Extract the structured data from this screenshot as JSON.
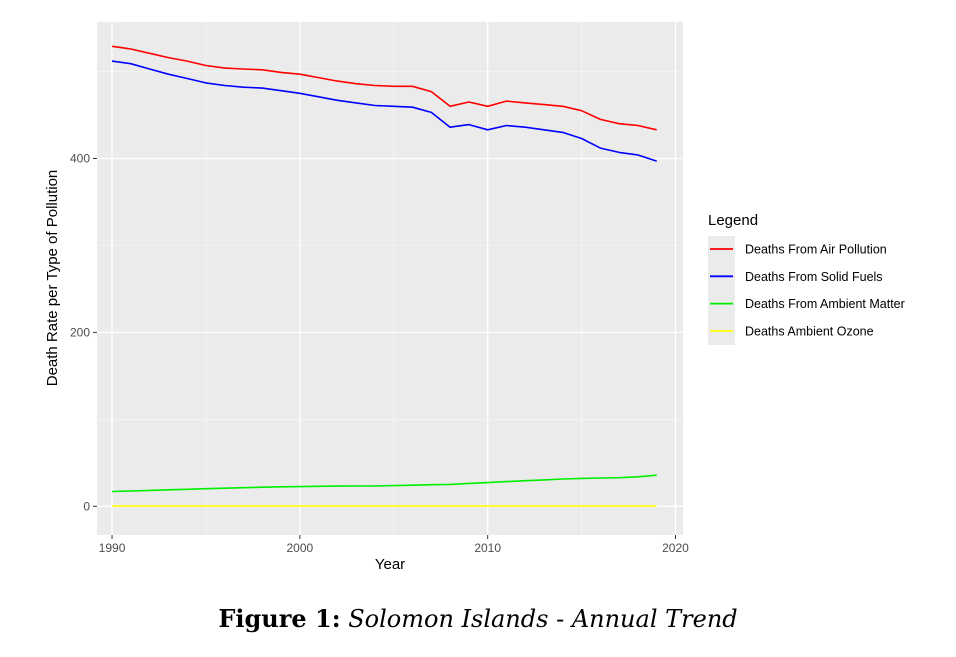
{
  "chart_data": {
    "type": "line",
    "xlabel": "Year",
    "ylabel": "Death Rate per Type of Pollution",
    "xlim": [
      1989.2,
      2020.4
    ],
    "ylim": [
      -33,
      557
    ],
    "x_ticks": [
      1990,
      2000,
      2010,
      2020
    ],
    "y_ticks": [
      0,
      200,
      400
    ],
    "grid": true,
    "legend_title": "Legend",
    "legend_position": "right",
    "x": [
      1990,
      1991,
      1992,
      1993,
      1994,
      1995,
      1996,
      1997,
      1998,
      1999,
      2000,
      2001,
      2002,
      2003,
      2004,
      2005,
      2006,
      2007,
      2008,
      2009,
      2010,
      2011,
      2012,
      2013,
      2014,
      2015,
      2016,
      2017,
      2018,
      2019
    ],
    "series": [
      {
        "name": "Deaths From Air Pollution",
        "color": "#ff0000",
        "values": [
          529,
          526,
          521,
          516,
          512,
          507,
          504,
          503,
          502,
          499,
          497,
          493,
          489,
          486,
          484,
          483,
          483,
          477,
          460,
          465,
          460,
          466,
          464,
          462,
          460,
          455,
          445,
          440,
          438,
          433
        ]
      },
      {
        "name": "Deaths From Solid Fuels",
        "color": "#0000ff",
        "values": [
          512,
          509,
          503,
          497,
          492,
          487,
          484,
          482,
          481,
          478,
          475,
          471,
          467,
          464,
          461,
          460,
          459,
          453,
          436,
          439,
          433,
          438,
          436,
          433,
          430,
          423,
          412,
          407,
          404,
          397
        ]
      },
      {
        "name": "Deaths From Ambient Matter",
        "color": "#00ee00",
        "values": [
          17,
          17.6,
          18.3,
          19,
          19.6,
          20.2,
          20.8,
          21.4,
          22,
          22.4,
          22.7,
          23,
          23.2,
          23.3,
          23.4,
          23.8,
          24.3,
          24.9,
          25.2,
          26.4,
          27.3,
          28.4,
          29.4,
          30.4,
          31.4,
          32.1,
          32.5,
          32.9,
          33.9,
          35.8
        ]
      },
      {
        "name": "Deaths Ambient Ozone",
        "color": "#ffff00",
        "values": [
          0.5,
          0.5,
          0.5,
          0.5,
          0.5,
          0.5,
          0.5,
          0.5,
          0.5,
          0.5,
          0.5,
          0.5,
          0.5,
          0.5,
          0.5,
          0.5,
          0.5,
          0.5,
          0.5,
          0.5,
          0.5,
          0.5,
          0.5,
          0.5,
          0.5,
          0.5,
          0.5,
          0.5,
          0.5,
          0.5
        ]
      }
    ]
  },
  "caption": {
    "label": "Figure 1:",
    "text": "Solomon Islands - Annual Trend"
  }
}
